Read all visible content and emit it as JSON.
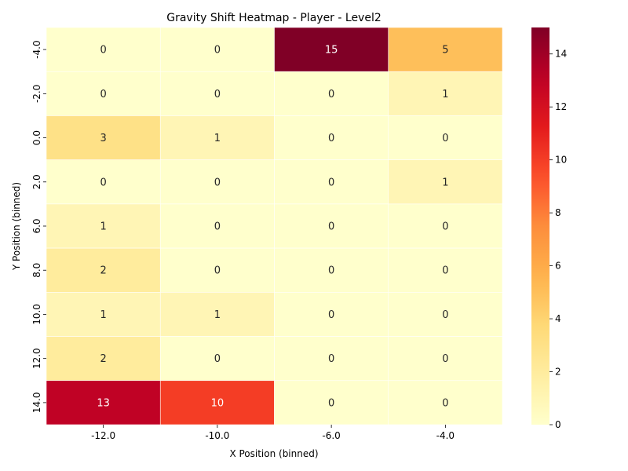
{
  "chart_data": {
    "type": "heatmap",
    "title": "Gravity Shift Heatmap - Player - Level2",
    "xlabel": "X Position (binned)",
    "ylabel": "Y Position (binned)",
    "x_categories": [
      "-12.0",
      "-10.0",
      "-6.0",
      "-4.0"
    ],
    "y_categories": [
      "-4.0",
      "-2.0",
      "0.0",
      "2.0",
      "6.0",
      "8.0",
      "10.0",
      "12.0",
      "14.0"
    ],
    "values": [
      [
        0,
        0,
        15,
        5
      ],
      [
        0,
        0,
        0,
        1
      ],
      [
        3,
        1,
        0,
        0
      ],
      [
        0,
        0,
        0,
        1
      ],
      [
        1,
        0,
        0,
        0
      ],
      [
        2,
        0,
        0,
        0
      ],
      [
        1,
        1,
        0,
        0
      ],
      [
        2,
        0,
        0,
        0
      ],
      [
        13,
        10,
        0,
        0
      ]
    ],
    "colorbar": {
      "min": 0,
      "max": 15,
      "ticks": [
        "0",
        "2",
        "4",
        "6",
        "8",
        "10",
        "12",
        "14"
      ],
      "colormap": "YlOrRd"
    },
    "grid": false,
    "cell_annotations": true
  }
}
